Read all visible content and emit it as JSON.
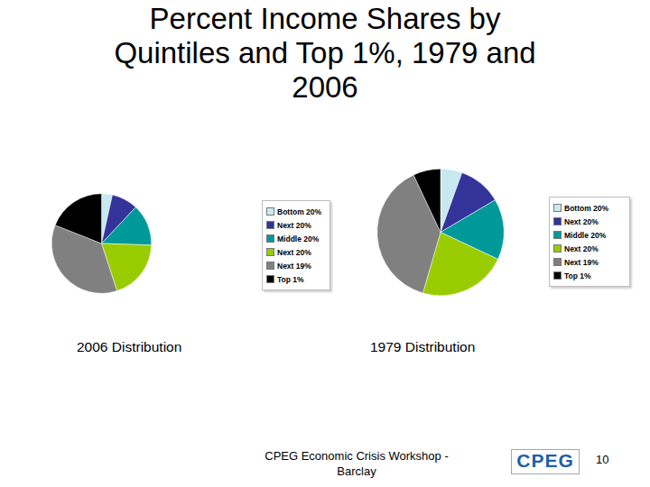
{
  "title": "Percent Income Shares by Quintiles and Top 1%, 1979 and 2006",
  "chart_data": [
    {
      "type": "pie",
      "title": "2006 Distribution",
      "categories": [
        "Bottom 20%",
        "Next 20%",
        "Middle 20%",
        "Next 20%",
        "Next 19%",
        "Top 1%"
      ],
      "values": [
        3.5,
        8.5,
        13.5,
        19.5,
        36,
        19
      ],
      "colors": [
        "#c9e9f0",
        "#333399",
        "#009999",
        "#99cc00",
        "#808080",
        "#000000"
      ],
      "legend": "right"
    },
    {
      "type": "pie",
      "title": "1979 Distribution",
      "categories": [
        "Bottom 20%",
        "Next 20%",
        "Middle 20%",
        "Next 20%",
        "Next 19%",
        "Top 1%"
      ],
      "values": [
        5.5,
        11,
        15.5,
        22.5,
        38.5,
        7
      ],
      "colors": [
        "#c9e9f0",
        "#333399",
        "#009999",
        "#99cc00",
        "#808080",
        "#000000"
      ],
      "legend": "right"
    }
  ],
  "footer": {
    "text": "CPEG Economic Crisis Workshop - Barclay",
    "logo": "CPEG",
    "page": 10
  }
}
